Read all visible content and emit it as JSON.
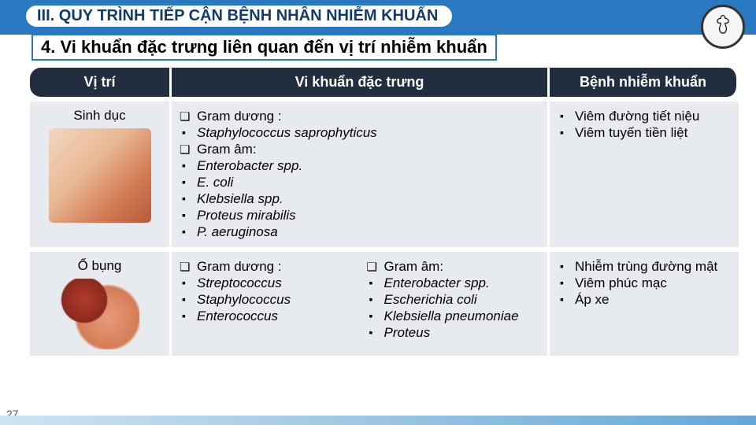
{
  "header": {
    "title": "III. QUY TRÌNH TIẾP CẬN BỆNH NHÂN NHIỄM KHUẨN",
    "subtitle": "4. Vi khuẩn đặc trưng liên quan đến vị trí nhiễm khuẩn"
  },
  "columns": [
    "Vị trí",
    "Vi khuẩn đặc trưng",
    "Bệnh nhiễm khuẩn"
  ],
  "rows": [
    {
      "location": "Sinh dục",
      "bacteria": [
        {
          "t": "sq",
          "text": "Gram dương :"
        },
        {
          "t": "bl",
          "text": "Staphylococcus  saprophyticus",
          "italic": true
        },
        {
          "t": "sq",
          "text": " Gram âm:"
        },
        {
          "t": "bl",
          "text": "Enterobacter spp.",
          "italic": true
        },
        {
          "t": "bl",
          "text": "E. coli",
          "italic": true
        },
        {
          "t": "bl",
          "text": "Klebsiella spp.",
          "italic": true
        },
        {
          "t": "bl",
          "text": "Proteus mirabilis",
          "italic": true
        },
        {
          "t": "bl",
          "text": "P. aeruginosa",
          "italic": true
        }
      ],
      "diseases": [
        {
          "t": "bl",
          "text": "Viêm đường tiết niệu"
        },
        {
          "t": "bl",
          "text": " Viêm tuyến tiền liệt"
        }
      ]
    },
    {
      "location": "Ổ bụng",
      "bacteria_left": [
        {
          "t": "sq",
          "text": "Gram dương :"
        },
        {
          "t": "bl",
          "text": "Streptococcus",
          "italic": true
        },
        {
          "t": "bl",
          "text": "Staphylococcus",
          "italic": true
        },
        {
          "t": "bl",
          "text": "Enterococcus",
          "italic": true
        }
      ],
      "bacteria_right": [
        {
          "t": "sq",
          "text": "Gram âm:"
        },
        {
          "t": "bl",
          "text": "Enterobacter spp.",
          "italic": true
        },
        {
          "t": "bl",
          "text": "Escherichia coli",
          "italic": true
        },
        {
          "t": "bl",
          "text": "Klebsiella pneumoniae",
          "italic": true
        },
        {
          "t": "bl",
          "text": "Proteus",
          "italic": true
        }
      ],
      "diseases": [
        {
          "t": "bl",
          "text": "Nhiễm trùng đường mật"
        },
        {
          "t": "bl",
          "text": "Viêm phúc mạc"
        },
        {
          "t": "bl",
          "text": "Áp xe"
        }
      ]
    }
  ],
  "slide_number": "27",
  "colors": {
    "header_blue": "#2a78c0",
    "thead_bg": "#222e3f",
    "cell_bg": "#e7ebef"
  }
}
